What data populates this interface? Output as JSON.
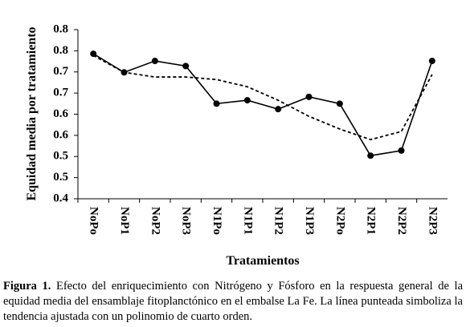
{
  "chart_data": {
    "type": "line",
    "x_label": "Tratamientos",
    "y_label": "Equidad media por tratamiento",
    "categories": [
      "NoPo",
      "NoP1",
      "NoP2",
      "NoP3",
      "N1Po",
      "N1P1",
      "N1P2",
      "N1P3",
      "N2Po",
      "N2P1",
      "N2P2",
      "N2P3"
    ],
    "series": [
      {
        "color": "#000000",
        "dashed": false,
        "markers": true,
        "values": [
          0.743,
          0.699,
          0.726,
          0.714,
          0.625,
          0.633,
          0.612,
          0.641,
          0.625,
          0.502,
          0.514,
          0.726
        ]
      },
      {
        "color": "#000000",
        "dashed": true,
        "markers": false,
        "values": [
          0.739,
          0.699,
          0.688,
          0.688,
          0.682,
          0.665,
          0.633,
          0.595,
          0.565,
          0.54,
          0.559,
          0.694
        ]
      }
    ],
    "ylim": [
      0.4,
      0.8
    ],
    "yticks": [
      0.4,
      {
        "value": 0.45,
        "label": "0.5"
      },
      0.5,
      {
        "value": 0.55,
        "label": "0.6"
      },
      0.6,
      {
        "value": 0.65,
        "label": "0.7"
      },
      0.7,
      {
        "value": 0.75,
        "label": "0.8"
      },
      0.8
    ],
    "grid": false,
    "caption_label": "Figura 1.",
    "caption_text": "Efecto del enriquecimiento con Nitrógeno y Fósforo en la respuesta general de la equidad media del ensamblaje fitoplanctónico en el embalse La Fe. La línea punteada simboliza la tendencia ajustada con un polinomio de cuarto orden."
  }
}
